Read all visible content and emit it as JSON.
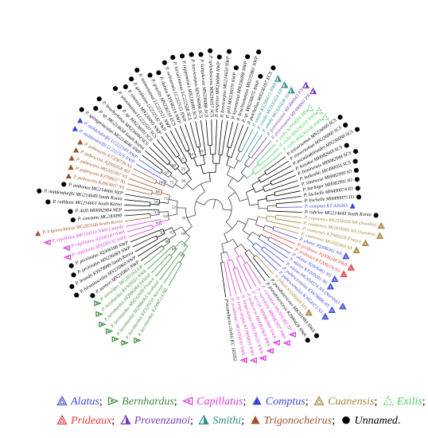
{
  "tree": {
    "bootstrap_values": [
      "99",
      "88",
      "74",
      "98",
      "92",
      "81",
      "68",
      "60",
      "93",
      "64",
      "58",
      "86",
      "73",
      "52",
      "87",
      "100",
      "97",
      "71",
      "80",
      "55",
      "59",
      "96",
      "84",
      "69"
    ]
  },
  "legend": {
    "items": [
      {
        "id": "alatus",
        "label": "Alatus",
        "color": "#3b46d6",
        "symbol": "triangle-open"
      },
      {
        "id": "bernhardus",
        "label": "Bernhardus",
        "color": "#3f8a3f",
        "symbol": "tri-right-open"
      },
      {
        "id": "capillatus",
        "label": "Capillatus",
        "color": "#d63ad6",
        "symbol": "tri-left-open"
      },
      {
        "id": "comptus",
        "label": "Comptus",
        "color": "#3b46d6",
        "symbol": "triangle-filled"
      },
      {
        "id": "cuanensis",
        "label": "Cuanensis",
        "color": "#a6853a",
        "symbol": "triangle-open"
      },
      {
        "id": "exilis",
        "label": "Exilis",
        "color": "#3fcf5a",
        "symbol": "triangle-dashed"
      },
      {
        "id": "prideaux",
        "label": "Prideaux",
        "color": "#e23a3a",
        "symbol": "triangle-open"
      },
      {
        "id": "provenzanoi",
        "label": "Provenzanoi",
        "color": "#7a3ab0",
        "symbol": "triangle-half"
      },
      {
        "id": "smithi",
        "label": "Smithi",
        "color": "#2f8f8a",
        "symbol": "triangle-half"
      },
      {
        "id": "trigonocheirus",
        "label": "Trigonocheirus",
        "color": "#a0522d",
        "symbol": "triangle-filled"
      },
      {
        "id": "unnamed",
        "label": "Unnamed",
        "color": "#000000",
        "symbol": "circle-filled"
      }
    ],
    "separator": ";",
    "terminator": "."
  },
  "taxa": [
    {
      "name": "P. bernhardus KJ990514 IRL",
      "color": "#3f8a3f",
      "marker": "tri-right-open"
    },
    {
      "name": "P. bernhardus KF929559 Norway",
      "color": "#3f8a3f",
      "marker": "tri-right-open"
    },
    {
      "name": "P. bernhardus HQ986063 Scotland",
      "color": "#3f8a3f",
      "marker": "tri-right-open"
    },
    {
      "name": "P. bernhardus MH242659 France",
      "color": "#3f8a3f",
      "marker": "tri-right-open"
    },
    {
      "name": "P. bernhardus HQ986064 Ireland",
      "color": "#3f8a3f",
      "marker": "tri-right-open"
    },
    {
      "name": "P. bernhardus KF929561 NWA",
      "color": "#3f8a3f",
      "marker": "tri-right-open"
    },
    {
      "name": "P. annulipes MG283163 EB",
      "color": "#3f8a3f",
      "marker": "tri-right-open"
    },
    {
      "name": "P. tanneri MN235861 NWP",
      "color": "#000000",
      "marker": "circle-filled"
    },
    {
      "name": "P. hirsutiusculus MN235860 NWP",
      "color": "#000000",
      "marker": "circle-filled"
    },
    {
      "name": "P. brandti KY678989 South Korea",
      "color": "#000000",
      "marker": "circle-filled"
    },
    {
      "name": "P. pectinatus MN236083 NWP",
      "color": "#000000",
      "marker": "circle-filled"
    },
    {
      "name": "P. pectinatus JQ306168 NWP",
      "color": "#000000",
      "marker": "circle-filled"
    },
    {
      "name": "P. capillatus MN236135 NWA",
      "color": "#d63ad6",
      "marker": "tri-left-open"
    },
    {
      "name": "P. capillatus JQ306183 NWA",
      "color": "#d63ad6",
      "marker": "tri-left-open"
    },
    {
      "name": "P. capillatus MK134110 NWA Canada",
      "color": "#d63ad6",
      "marker": "tri-left-open"
    },
    {
      "name": "P. trigonocheirus MG283166 South Korea",
      "color": "#a0522d",
      "marker": "triangle-filled"
    },
    {
      "name": "P. constans MG283090",
      "color": "#000000",
      "marker": "circle-filled"
    },
    {
      "name": "P. dalli MH082984 NEP",
      "color": "#000000",
      "marker": "circle-filled"
    },
    {
      "name": "P. rathbuni MG214661 South Korea",
      "color": "#000000",
      "marker": "circle-filled"
    },
    {
      "name": "P. middendorffii MG214649 South Korea",
      "color": "#000000",
      "marker": "circle-filled"
    },
    {
      "name": "P. ambonus MG214666 NEP",
      "color": "#000000",
      "marker": "circle-filled"
    },
    {
      "name": "P. pubescens KJ803807 NS",
      "color": "#a0522d",
      "marker": "triangle-filled"
    },
    {
      "name": "P. pubescens KJ708627 NS",
      "color": "#a0522d",
      "marker": "triangle-filled"
    },
    {
      "name": "P. pubescens MG935367 NS",
      "color": "#a0522d",
      "marker": "triangle-filled"
    },
    {
      "name": "P. pubescens JQ305958 AO",
      "color": "#a0522d",
      "marker": "triangle-filled"
    },
    {
      "name": "P. pubescens KT208739 NS",
      "color": "#a0522d",
      "marker": "triangle-filled"
    },
    {
      "name": "P. middendorffii LC222326 NWP",
      "color": "#3b46d6",
      "marker": "triangle-filled"
    },
    {
      "name": "P. middendorffii LC222349 NWP",
      "color": "#3b46d6",
      "marker": "triangle-filled"
    },
    {
      "name": "P. spinigeriaculus MG214646 NWP",
      "color": "#000000",
      "marker": "circle-filled"
    },
    {
      "name": "P. sp. MG214638 South Korea",
      "color": "#000000",
      "marker": "circle-filled"
    },
    {
      "name": "P. brachyrhinus MN236094 SCS",
      "color": "#000000",
      "marker": "circle-filled"
    },
    {
      "name": "P. sp. MN236091 SCS",
      "color": "#000000",
      "marker": "circle-filled"
    },
    {
      "name": "P. setosimanus LC222507 SCS",
      "color": "#000000",
      "marker": "circle-filled"
    },
    {
      "name": "P. sinensis MN236095 NWP",
      "color": "#000000",
      "marker": "circle-filled"
    },
    {
      "name": "P. geminatus LC222532 NWP",
      "color": "#000000",
      "marker": "circle-filled"
    },
    {
      "name": "P. mineomatsui LC222521 NWP",
      "color": "#000000",
      "marker": "circle-filled"
    },
    {
      "name": "P. gracilis MN236110 ECS",
      "color": "#000000",
      "marker": "circle-filled"
    },
    {
      "name": "P. dubius KY938219 NWP",
      "color": "#000000",
      "marker": "circle-filled"
    },
    {
      "name": "P. ochotensis LC222515 NWP",
      "color": "#000000",
      "marker": "circle-filled"
    },
    {
      "name": "P. hirsutimanus LC222508 SCS",
      "color": "#000000",
      "marker": "circle-filled"
    },
    {
      "name": "P. nipponensis MN236080 SCS",
      "color": "#000000",
      "marker": "circle-filled"
    },
    {
      "name": "P. brevicarpus MN236096 SCS",
      "color": "#000000",
      "marker": "circle-filled"
    },
    {
      "name": "P. kobjakovae MN236088 SCS",
      "color": "#000000",
      "marker": "circle-filled"
    },
    {
      "name": "P. splendescens MN236057 SCS",
      "color": "#000000",
      "marker": "circle-filled"
    },
    {
      "name": "P. megistos MN236084 NWP",
      "color": "#000000",
      "marker": "circle-filled"
    },
    {
      "name": "P. brevicarpus MG214650 NWP",
      "color": "#000000",
      "marker": "circle-filled"
    },
    {
      "name": "P. gilli MN236070 NWP",
      "color": "#000000",
      "marker": "circle-filled"
    },
    {
      "name": "P. kiyomatsui MN236098 NWP",
      "color": "#000000",
      "marker": "circle-filled"
    },
    {
      "name": "P. brachiomastus MN235861 NWP",
      "color": "#000000",
      "marker": "circle-filled"
    },
    {
      "name": "P. sp. MN236075 NWP",
      "color": "#000000",
      "marker": "circle-filled"
    },
    {
      "name": "P. pulchellus MN236107 ECS",
      "color": "#000000",
      "marker": "circle-filled"
    },
    {
      "name": "P. smithi KT209415 NWA",
      "color": "#2f8f8a",
      "marker": "triangle-half"
    },
    {
      "name": "P. smithi MG935434 EP",
      "color": "#2f8f8a",
      "marker": "triangle-half"
    },
    {
      "name": "P. smithi MG935438 SS",
      "color": "#2f8f8a",
      "marker": "triangle-half"
    },
    {
      "name": "P. provenzanoi MF490043 PN",
      "color": "#7a3ab0",
      "marker": "triangle-half"
    },
    {
      "name": "P. provenzanoi MF490041 PN",
      "color": "#7a3ab0",
      "marker": "triangle-half"
    },
    {
      "name": "P. exilis KJ954091 MS",
      "color": "#3fcf5a",
      "marker": "triangle-dashed"
    },
    {
      "name": "P. exilis MN236114 NWA",
      "color": "#3fcf5a",
      "marker": "triangle-dashed"
    },
    {
      "name": "P. exilis MN236108 NWA",
      "color": "#3fcf5a",
      "marker": "triangle-dashed"
    },
    {
      "name": "P. traversomus MN236069 SCS",
      "color": "#000000",
      "marker": "circle-filled"
    },
    {
      "name": "P. traversomus MN236060 SCS",
      "color": "#000000",
      "marker": "circle-filled"
    },
    {
      "name": "P. pseudodeleoides MN236098 SCS",
      "color": "#000000",
      "marker": "circle-filled"
    },
    {
      "name": "P. kosakai MH082949 SCS",
      "color": "#000000",
      "marker": "circle-filled"
    },
    {
      "name": "P. boninensis MH082948 SCS",
      "color": "#000000",
      "marker": "circle-filled"
    },
    {
      "name": "P. kuikoshii MF490054 SCS",
      "color": "#000000",
      "marker": "circle-filled"
    },
    {
      "name": "P. simmonsi MH082990 IO",
      "color": "#000000",
      "marker": "circle-filled"
    },
    {
      "name": "P. barbiger MH082991 IO",
      "color": "#000000",
      "marker": "circle-filled"
    },
    {
      "name": "P. lischelle MH490074 IO",
      "color": "#000000",
      "marker": "circle-filled"
    },
    {
      "name": "P. lischelle MH490075 IO",
      "color": "#000000",
      "marker": "circle-filled"
    },
    {
      "name": "P. comptus KY 426265",
      "color": "#3b46d6",
      "marker": "triangle-filled"
    },
    {
      "name": "P. rubrior MG214643 South Korea",
      "color": "#000000",
      "marker": "circle-filled"
    },
    {
      "name": "P. cuanensis MG934928 NA (Sweden)",
      "color": "#a6853a",
      "marker": "triangle-open"
    },
    {
      "name": "P. cuanensis MG935085 NA (Sweden)",
      "color": "#a6853a",
      "marker": "triangle-open"
    },
    {
      "name": "P. cuanensis KT988329 France",
      "color": "#a6853a",
      "marker": "triangle-open"
    },
    {
      "name": "P. cuanensis MG935469 SA",
      "color": "#a6853a",
      "marker": "triangle-open"
    },
    {
      "name": "P. alatus JQ306341 NA",
      "color": "#3b46d6",
      "marker": "triangle-open"
    },
    {
      "name": "P. prideaux JQ306244 NWA",
      "color": "#e23a3a",
      "marker": "triangle-open"
    },
    {
      "name": "P. prideaux KT209274 NS",
      "color": "#e23a3a",
      "marker": "triangle-open"
    },
    {
      "name": "P. alatus JQ306461 NS",
      "color": "#3b46d6",
      "marker": "triangle-open"
    },
    {
      "name": "P. alatus KT209041 NS",
      "color": "#3b46d6",
      "marker": "triangle-open"
    },
    {
      "name": "P. alatus MG934574 NA (Norway)",
      "color": "#3b46d6",
      "marker": "triangle-open"
    },
    {
      "name": "P. pubescentulus KY678886 NS",
      "color": "#3b46d6",
      "marker": "triangle-open"
    },
    {
      "name": "P. pubescentulus KJ954072 NS",
      "color": "#3b46d6",
      "marker": "triangle-open"
    },
    {
      "name": "P. filholi KY508449 MS",
      "color": "#a6853a",
      "marker": "triangle-open"
    },
    {
      "name": "P. pseudosericeus MK301993 NWA",
      "color": "#000000",
      "marker": "circle-filled"
    },
    {
      "name": "P. pseudosericeus KJ990428 NWA",
      "color": "#000000",
      "marker": "circle-filled"
    },
    {
      "name": "P. carinatus MG935382 TP",
      "color": "#d63ad6",
      "marker": "tri-left-open"
    },
    {
      "name": "P. variabilis MH082997 NWA",
      "color": "#d63ad6",
      "marker": "tri-left-open"
    },
    {
      "name": "P. verrilli MH083000 NWA",
      "color": "#d63ad6",
      "marker": "tri-left-open"
    },
    {
      "name": "P. pollicaris MH082969 NWA",
      "color": "#d63ad6",
      "marker": "tri-left-open"
    },
    {
      "name": "P. longicarpus MN236020 NWA",
      "color": "#d63ad6",
      "marker": "tri-left-open"
    },
    {
      "name": "P. longicarpus KU905810 NWA",
      "color": "#d63ad6",
      "marker": "tri-left-open"
    },
    {
      "name": "P. acadianus MG935050 NWA",
      "color": "#d63ad6",
      "marker": "tri-left-open"
    },
    {
      "name": "Procambarus clarkii KC 165052",
      "color": "#000000",
      "marker": "none"
    }
  ]
}
